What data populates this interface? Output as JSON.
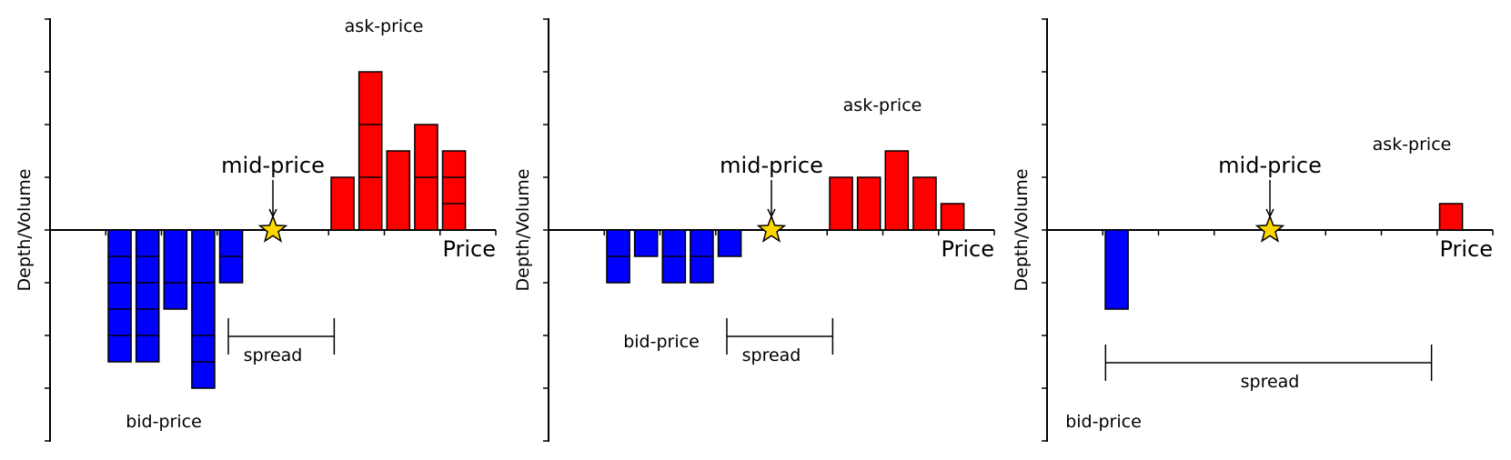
{
  "colors": {
    "bid": "#0000ff",
    "ask": "#ff0000",
    "mid_star": "#ffd700",
    "axis": "#000000"
  },
  "labels": {
    "mid": "mid-price",
    "bid": "bid-price",
    "ask": "ask-price",
    "spread": "spread",
    "x": "Price",
    "y": "Depth/Volume"
  },
  "chart_data": [
    {
      "type": "bar",
      "xlim": [
        0,
        16
      ],
      "ylim": [
        -4,
        4
      ],
      "mid_price": 8,
      "spread": [
        6.4,
        10.2
      ],
      "bid": [
        {
          "x": 2.5,
          "units": [
            1,
            1,
            1,
            1,
            1
          ]
        },
        {
          "x": 3.5,
          "units": [
            1,
            1,
            1,
            1,
            1
          ]
        },
        {
          "x": 4.5,
          "units": [
            2,
            1
          ]
        },
        {
          "x": 5.5,
          "units": [
            2,
            2,
            1,
            1
          ]
        },
        {
          "x": 6.5,
          "units": [
            1,
            1
          ]
        }
      ],
      "ask": [
        {
          "x": 10.5,
          "units": [
            2
          ]
        },
        {
          "x": 11.5,
          "units": [
            2,
            2,
            2
          ]
        },
        {
          "x": 12.5,
          "units": [
            3
          ]
        },
        {
          "x": 13.5,
          "units": [
            2,
            2
          ]
        },
        {
          "x": 14.5,
          "units": [
            1,
            1,
            1
          ]
        }
      ]
    },
    {
      "type": "bar",
      "xlim": [
        0,
        16
      ],
      "ylim": [
        -4,
        4
      ],
      "mid_price": 8,
      "spread": [
        6.4,
        10.2
      ],
      "bid": [
        {
          "x": 2.5,
          "units": [
            1,
            1
          ]
        },
        {
          "x": 3.5,
          "units": [
            1
          ]
        },
        {
          "x": 4.5,
          "units": [
            1,
            1
          ]
        },
        {
          "x": 5.5,
          "units": [
            1,
            1
          ]
        },
        {
          "x": 6.5,
          "units": [
            1
          ]
        }
      ],
      "ask": [
        {
          "x": 10.5,
          "units": [
            2
          ]
        },
        {
          "x": 11.5,
          "units": [
            2
          ]
        },
        {
          "x": 12.5,
          "units": [
            3
          ]
        },
        {
          "x": 13.5,
          "units": [
            2
          ]
        },
        {
          "x": 14.5,
          "units": [
            1
          ]
        }
      ]
    },
    {
      "type": "bar",
      "xlim": [
        0,
        16
      ],
      "ylim": [
        -4,
        4
      ],
      "mid_price": 8,
      "spread": [
        2.1,
        13.8
      ],
      "bid": [
        {
          "x": 2.5,
          "units": [
            3
          ]
        }
      ],
      "ask": [
        {
          "x": 14.5,
          "units": [
            1
          ]
        }
      ]
    }
  ]
}
